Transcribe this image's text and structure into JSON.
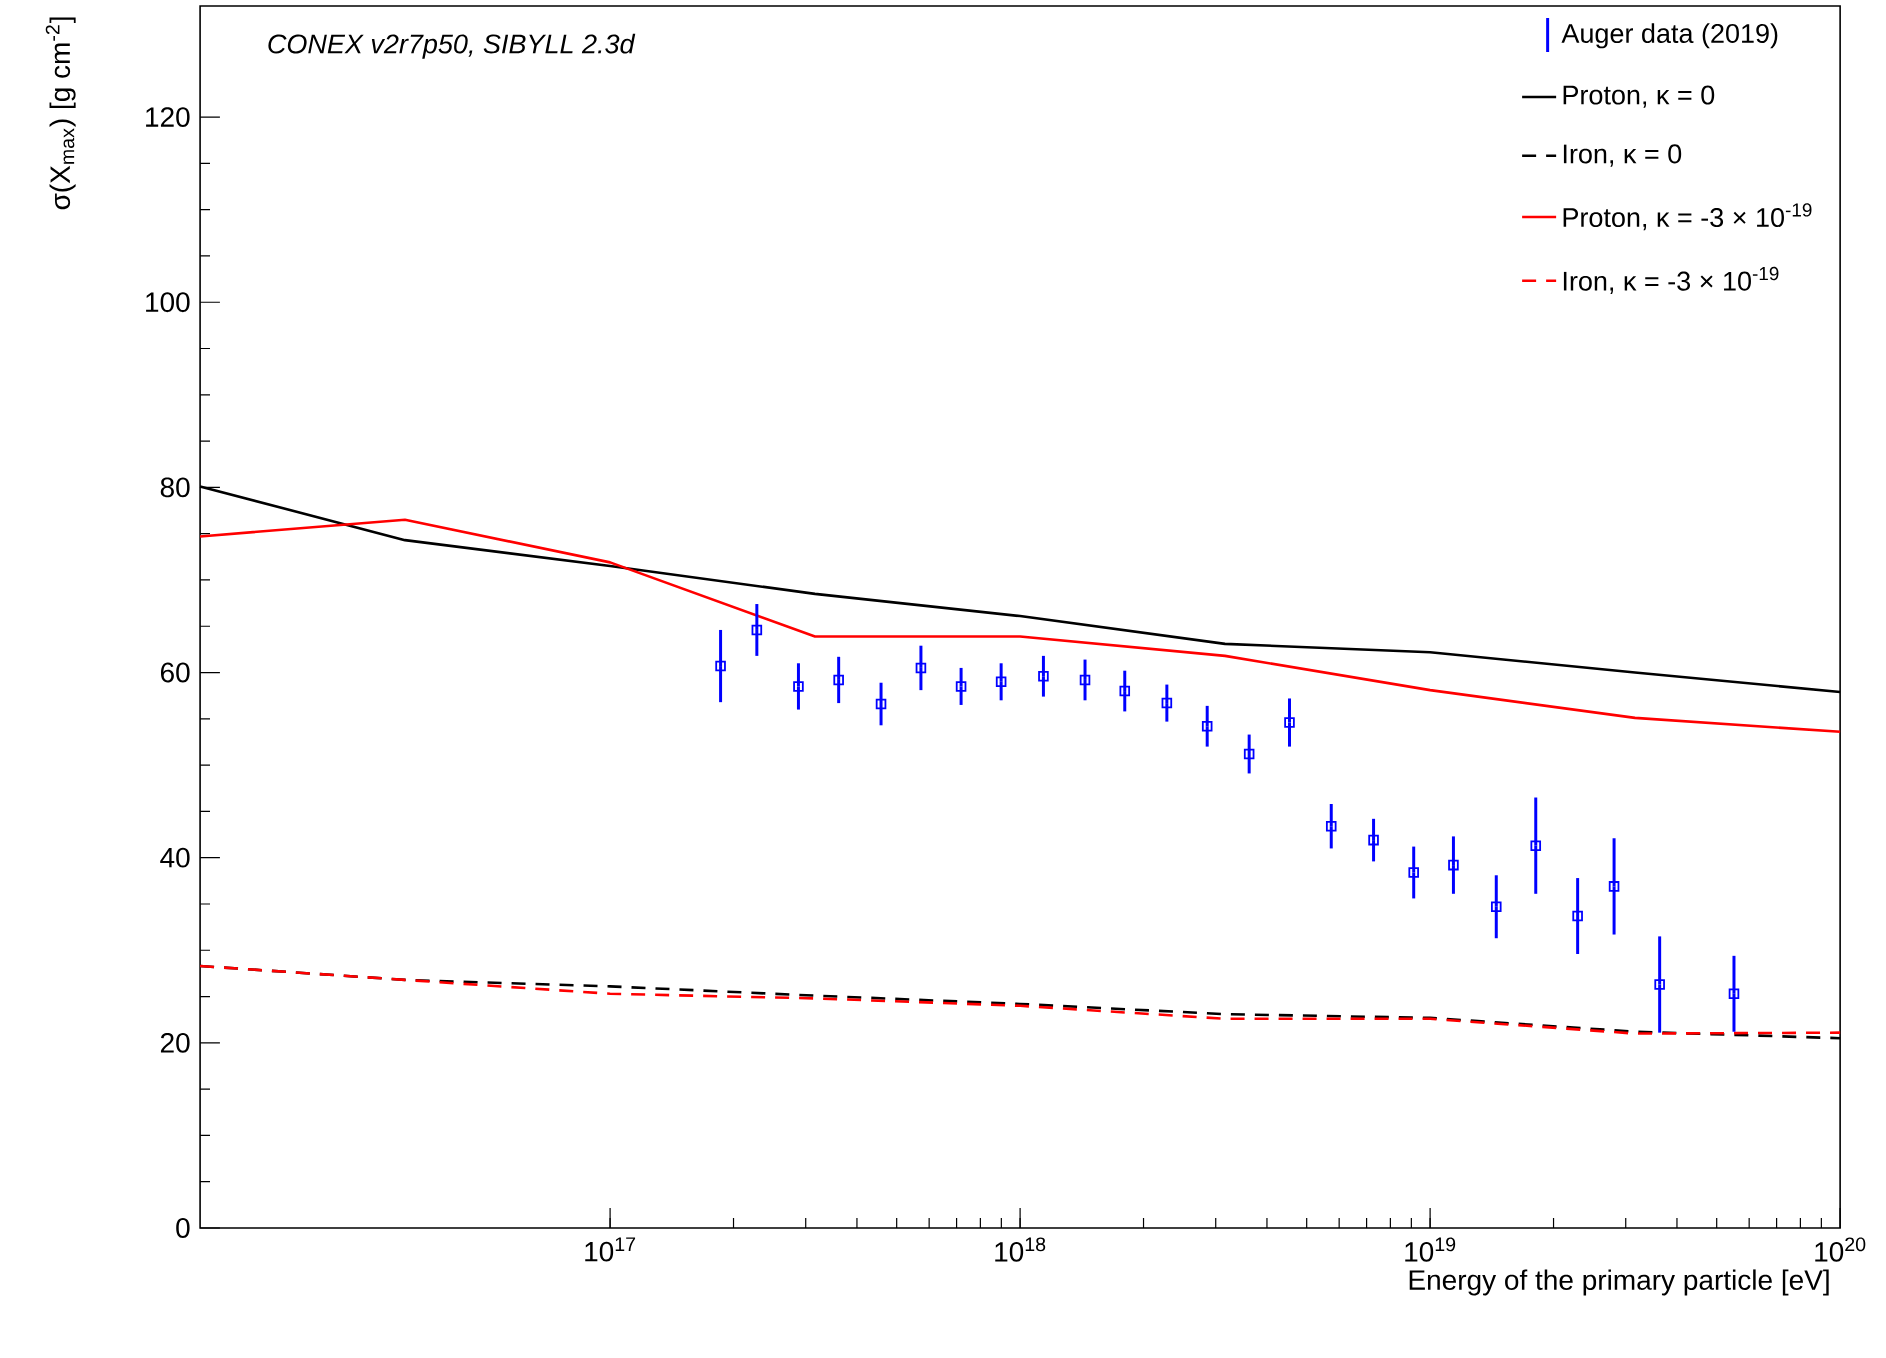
{
  "chart_data": {
    "type": "line",
    "log": "x",
    "legend": "top right",
    "xlabel": "Energy of the primary particle [eV]",
    "ylabel": "σ(X$_{max}$) [g cm$^{-2}$]",
    "annotations": [
      "*CONEX v2r7p50, SIBYLL 2.3d*"
    ],
    "xlim": [
      1e+16,
      1e+20
    ],
    "ylim": [
      0,
      132
    ],
    "xticks": [
      {
        "value": 1e+17,
        "label": "10$^{17}$"
      },
      {
        "value": 1e+18,
        "label": "10$^{18}$"
      },
      {
        "value": 1e+19,
        "label": "10$^{19}$"
      },
      {
        "value": 1e+20,
        "label": "10$^{20}$"
      }
    ],
    "yticks": [
      0,
      20,
      40,
      60,
      80,
      100,
      120
    ],
    "series": [
      {
        "name": "Auger data (2019)",
        "type": "scatter",
        "marker": "square",
        "color": "#0000ff",
        "x": [
          1.86e+17,
          2.28e+17,
          2.88e+17,
          3.61e+17,
          4.58e+17,
          5.73e+17,
          7.18e+17,
          8.99e+17,
          1.14e+18,
          1.44e+18,
          1.8e+18,
          2.28e+18,
          2.86e+18,
          3.62e+18,
          4.54e+18,
          5.74e+18,
          7.28e+18,
          9.12e+18,
          1.14e+19,
          1.45e+19,
          1.81e+19,
          2.29e+19,
          2.81e+19,
          3.63e+19,
          5.51e+19
        ],
        "values": [
          60.7,
          64.6,
          58.5,
          59.2,
          56.6,
          60.5,
          58.5,
          59.0,
          59.6,
          59.2,
          58.0,
          56.7,
          54.2,
          51.2,
          54.6,
          43.4,
          41.9,
          38.4,
          39.2,
          34.7,
          41.3,
          33.7,
          36.9,
          26.3,
          25.3
        ],
        "errors": [
          3.9,
          2.8,
          2.5,
          2.5,
          2.3,
          2.4,
          2.0,
          2.0,
          2.2,
          2.2,
          2.2,
          2.0,
          2.2,
          2.1,
          2.6,
          2.4,
          2.3,
          2.8,
          3.1,
          3.4,
          5.2,
          4.1,
          5.2,
          5.2,
          4.1
        ]
      },
      {
        "name": "Proton, κ = 0",
        "line_style": "solid",
        "color": "#000000",
        "x": [
          1e+16,
          3.16e+16,
          1e+17,
          3.16e+17,
          1e+18,
          3.16e+18,
          1e+19,
          3.16e+19,
          1e+20
        ],
        "values": [
          80.1,
          74.3,
          71.5,
          68.5,
          66.1,
          63.1,
          62.2,
          60.0,
          57.9
        ]
      },
      {
        "name": "Iron, κ = 0",
        "line_style": "dashed",
        "color": "#000000",
        "x": [
          1e+16,
          3.16e+16,
          1e+17,
          3.16e+17,
          1e+18,
          3.16e+18,
          1e+19,
          3.16e+19,
          1e+20
        ],
        "values": [
          28.3,
          26.8,
          26.1,
          25.1,
          24.2,
          23.1,
          22.7,
          21.2,
          20.5
        ]
      },
      {
        "name": "Proton, κ = -3 × 10$^{-19}$",
        "line_style": "solid",
        "color": "#ff0000",
        "x": [
          1e+16,
          3.16e+16,
          1e+17,
          3.16e+17,
          1e+18,
          3.16e+18,
          1e+19,
          3.16e+19,
          1e+20
        ],
        "values": [
          74.7,
          76.5,
          71.9,
          63.9,
          63.9,
          61.8,
          58.1,
          55.1,
          53.6
        ]
      },
      {
        "name": "Iron, κ = -3 × 10$^{-19}$",
        "line_style": "dashed",
        "color": "#ff0000",
        "x": [
          1e+16,
          3.16e+16,
          1e+17,
          3.16e+17,
          1e+18,
          3.16e+18,
          1e+19,
          3.16e+19,
          1e+20
        ],
        "values": [
          28.3,
          26.8,
          25.3,
          24.8,
          24.0,
          22.6,
          22.6,
          21.0,
          21.1
        ]
      }
    ]
  }
}
